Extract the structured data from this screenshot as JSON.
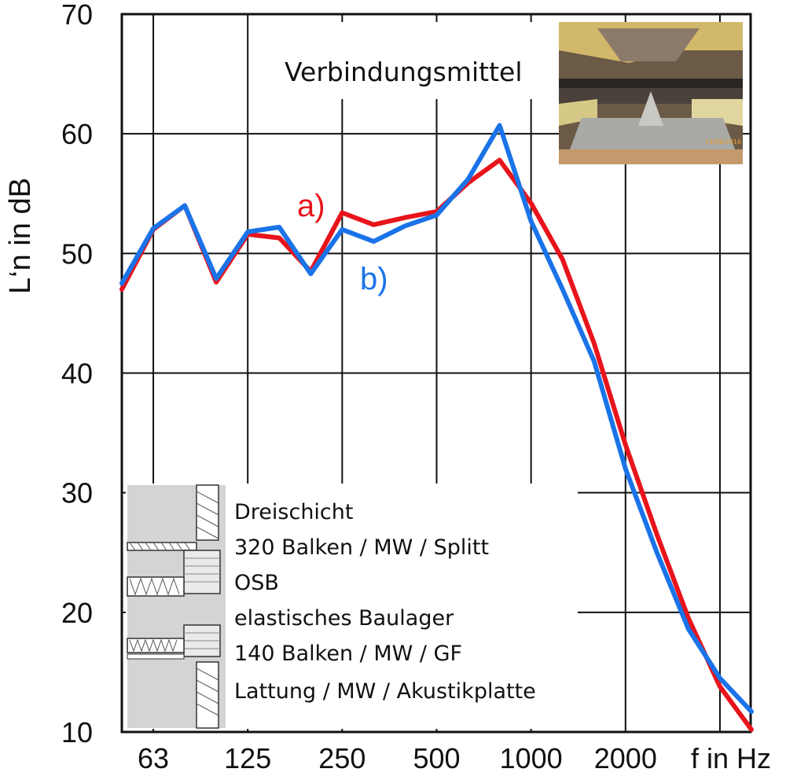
{
  "chart_data": {
    "type": "line",
    "ylabel": "L‘n in dB",
    "xlabel": "f in Hz",
    "ylim": [
      10,
      70
    ],
    "yticks": [
      "10",
      "20",
      "30",
      "40",
      "50",
      "60",
      "70"
    ],
    "xticks": [
      "63",
      "125",
      "250",
      "500",
      "1000",
      "2000"
    ],
    "xscale": "log (third-octave bands)",
    "grid": true,
    "x": [
      50,
      63,
      80,
      100,
      125,
      160,
      200,
      250,
      315,
      400,
      500,
      630,
      800,
      1000,
      1250,
      1600,
      2000,
      2500,
      3150,
      4000,
      5000
    ],
    "series": [
      {
        "name": "a)",
        "color": "#e8141c",
        "values": [
          47,
          52,
          54,
          47.6,
          51.6,
          51.3,
          48.5,
          53.4,
          52.4,
          53,
          53.5,
          55.9,
          57.8,
          54.2,
          49.5,
          42.5,
          34,
          26.5,
          19.5,
          13.8,
          10.2
        ]
      },
      {
        "name": "b)",
        "color": "#1a73e8",
        "values": [
          47.5,
          52.1,
          54,
          47.9,
          51.8,
          52.2,
          48.3,
          52,
          51,
          52.3,
          53.2,
          56.2,
          60.7,
          52.7,
          47,
          41,
          32,
          25,
          18.6,
          14.5,
          11.7
        ]
      }
    ]
  },
  "annotations": {
    "photo_caption": "Verbindungsmittel",
    "photo_stamp": "14/06/2016",
    "legend_lines": [
      "Dreischicht",
      "320 Balken / MW / Splitt",
      "OSB",
      "elastisches Baulager",
      "140 Balken / MW / GF",
      "Lattung / MW / Akustikplatte"
    ]
  }
}
